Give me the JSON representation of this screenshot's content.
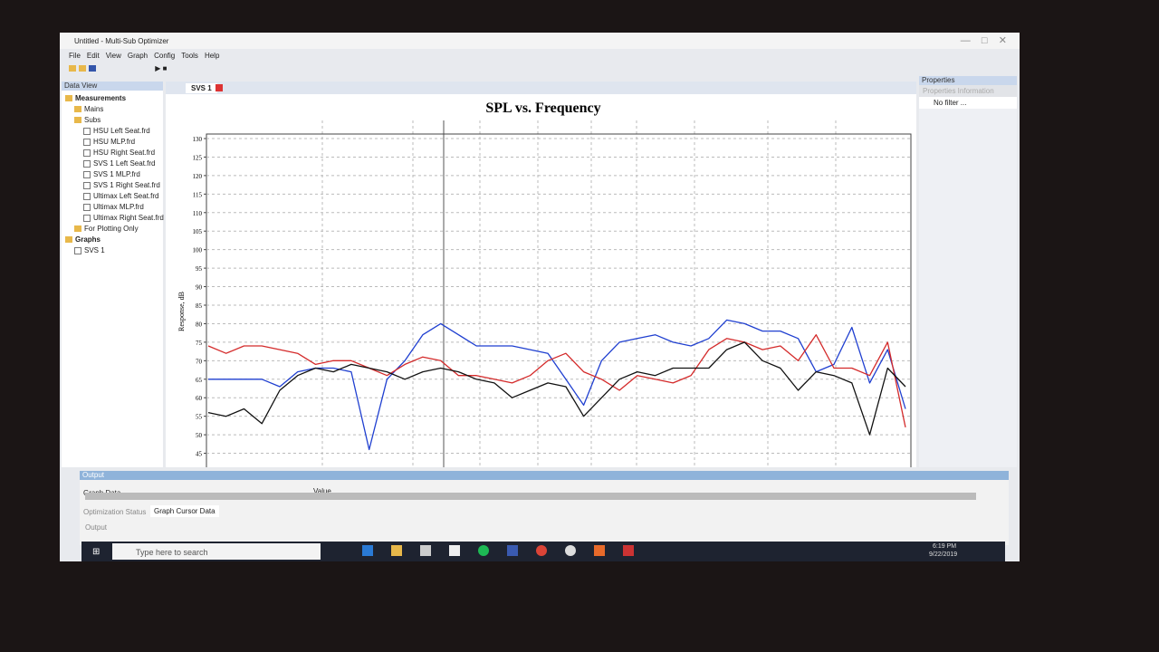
{
  "window": {
    "title": "Untitled - Multi-Sub Optimizer",
    "menu": [
      "File",
      "Edit",
      "View",
      "Graph",
      "Config",
      "Tools",
      "Help"
    ]
  },
  "data_view": {
    "title": "Data View",
    "tree": [
      {
        "label": "Measurements",
        "children": [
          {
            "label": "Mains"
          },
          {
            "label": "Subs",
            "children": [
              {
                "label": "HSU Left Seat.frd"
              },
              {
                "label": "HSU MLP.frd"
              },
              {
                "label": "HSU Right Seat.frd"
              },
              {
                "label": "SVS 1 Left Seat.frd"
              },
              {
                "label": "SVS 1 MLP.frd"
              },
              {
                "label": "SVS 1 Right Seat.frd"
              },
              {
                "label": "Ultimax Left Seat.frd"
              },
              {
                "label": "Ultimax MLP.frd"
              },
              {
                "label": "Ultimax Right Seat.frd"
              }
            ]
          },
          {
            "label": "For Plotting Only"
          }
        ]
      },
      {
        "label": "Graphs",
        "children": [
          {
            "label": "SVS 1"
          }
        ]
      }
    ]
  },
  "tab": "SVS 1",
  "chart_data": {
    "type": "line",
    "title": "SPL vs. Frequency",
    "y_label": "Response, dB",
    "ylim": [
      40,
      130
    ],
    "yticks": [
      40,
      45,
      50,
      55,
      60,
      65,
      70,
      75,
      80,
      85,
      90,
      95,
      100,
      105,
      110,
      115,
      120,
      125,
      130
    ],
    "grid": true,
    "series": [
      {
        "color": "#1f3fd0",
        "values": [
          65,
          65,
          65,
          65,
          63,
          67,
          68,
          68,
          67,
          46,
          65,
          70,
          77,
          80,
          77,
          74,
          74,
          74,
          73,
          72,
          65,
          58,
          70,
          75,
          76,
          77,
          75,
          74,
          76,
          81,
          80,
          78,
          78,
          76,
          67,
          69,
          79,
          64,
          73,
          57
        ]
      },
      {
        "color": "#d42a2a",
        "values": [
          74,
          72,
          74,
          74,
          73,
          72,
          69,
          70,
          70,
          68,
          66,
          69,
          71,
          70,
          66,
          66,
          65,
          64,
          66,
          70,
          72,
          67,
          65,
          62,
          66,
          65,
          64,
          66,
          73,
          76,
          75,
          73,
          74,
          70,
          77,
          68,
          68,
          66,
          75,
          52
        ]
      },
      {
        "color": "#111111",
        "values": [
          56,
          55,
          57,
          53,
          62,
          66,
          68,
          67,
          69,
          68,
          67,
          65,
          67,
          68,
          67,
          65,
          64,
          60,
          62,
          64,
          63,
          55,
          60,
          65,
          67,
          66,
          68,
          68,
          68,
          73,
          75,
          70,
          68,
          62,
          67,
          66,
          64,
          50,
          68,
          63
        ]
      }
    ]
  },
  "properties": {
    "title": "Properties",
    "section": "Properties Information",
    "filter": "No filter ..."
  },
  "output": {
    "title": "Output",
    "columns": [
      "Graph Data",
      "Value"
    ],
    "tabs": [
      "Optimization Status",
      "Graph Cursor Data"
    ],
    "footer": "Output"
  },
  "taskbar": {
    "search": "Type here to search",
    "time": "6:19 PM",
    "date": "9/22/2019"
  }
}
